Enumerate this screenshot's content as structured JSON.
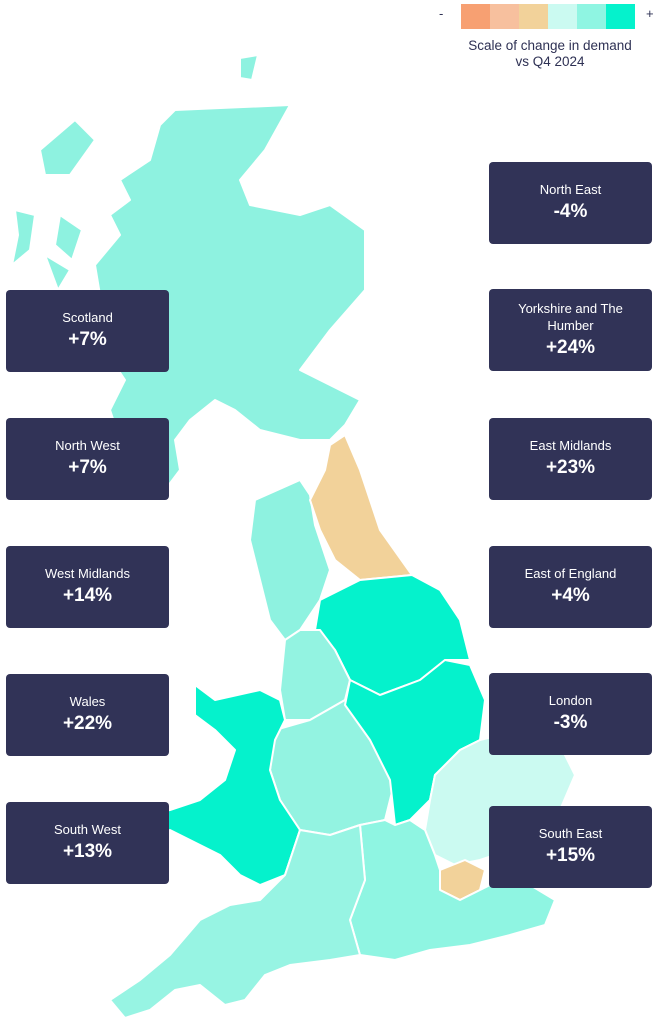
{
  "legend": {
    "minus_symbol": "-",
    "plus_symbol": "+",
    "title": "Scale of change in demand vs Q4 2024",
    "swatches": [
      "#f7a072",
      "#f7c09e",
      "#f2d29a",
      "#cbfaf1",
      "#8ff5e2",
      "#05f2cc"
    ]
  },
  "regions": {
    "scotland": {
      "label": "Scotland",
      "value": "+7%",
      "color": "#8ef2e0"
    },
    "north_west": {
      "label": "North West",
      "value": "+7%",
      "color": "#8ef2e0"
    },
    "west_midlands": {
      "label": "West Midlands",
      "value": "+14%",
      "color": "#93f3e1"
    },
    "wales": {
      "label": "Wales",
      "value": "+22%",
      "color": "#05f2cc"
    },
    "south_west": {
      "label": "South West",
      "value": "+13%",
      "color": "#97f4e3"
    },
    "north_east": {
      "label": "North East",
      "value": "-4%",
      "color": "#f2d29a"
    },
    "yorkshire": {
      "label": "Yorkshire and The Humber",
      "value": "+24%",
      "color": "#05f2cc"
    },
    "east_midlands": {
      "label": "East Midlands",
      "value": "+23%",
      "color": "#05f2cc"
    },
    "east_of_england": {
      "label": "East of England",
      "value": "+4%",
      "color": "#cbfaf1"
    },
    "london": {
      "label": "London",
      "value": "-3%",
      "color": "#f2d29a"
    },
    "south_east": {
      "label": "South East",
      "value": "+15%",
      "color": "#8ff5e2"
    }
  }
}
